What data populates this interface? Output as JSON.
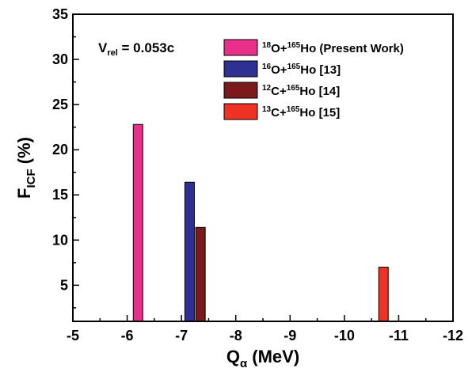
{
  "chart_data": {
    "type": "bar",
    "xlabel_main": "Q",
    "xlabel_sub": "α",
    "xlabel_unit": " (MeV)",
    "ylabel_main": "F",
    "ylabel_sub": "ICF",
    "ylabel_unit": " (%)",
    "xlim": [
      -5,
      -12
    ],
    "ylim": [
      1,
      35
    ],
    "x_ticks": [
      -5,
      -6,
      -7,
      -8,
      -9,
      -10,
      -11,
      -12
    ],
    "y_ticks": [
      5,
      10,
      15,
      20,
      25,
      30,
      35
    ],
    "annotation": {
      "main": "V",
      "sub": "rel",
      "value": " = 0.053c"
    },
    "legend_placement": "top-right",
    "series": [
      {
        "label_sup1": "18",
        "label_mid": "O+",
        "label_sup2": "165",
        "label_end": "Ho (Present Work)",
        "color": "#e8308a",
        "x": -6.2,
        "value": 22.8
      },
      {
        "label_sup1": "16",
        "label_mid": "O+",
        "label_sup2": "165",
        "label_end": "Ho  [13]",
        "color": "#2e3192",
        "x": -7.15,
        "value": 16.4
      },
      {
        "label_sup1": "12",
        "label_mid": "C+",
        "label_sup2": "165",
        "label_end": "Ho  [14]",
        "color": "#7b1a1a",
        "x": -7.35,
        "value": 11.4
      },
      {
        "label_sup1": "13",
        "label_mid": "C+",
        "label_sup2": "165",
        "label_end": "Ho  [15]",
        "color": "#ee3224",
        "x": -10.72,
        "value": 7.0
      }
    ]
  }
}
